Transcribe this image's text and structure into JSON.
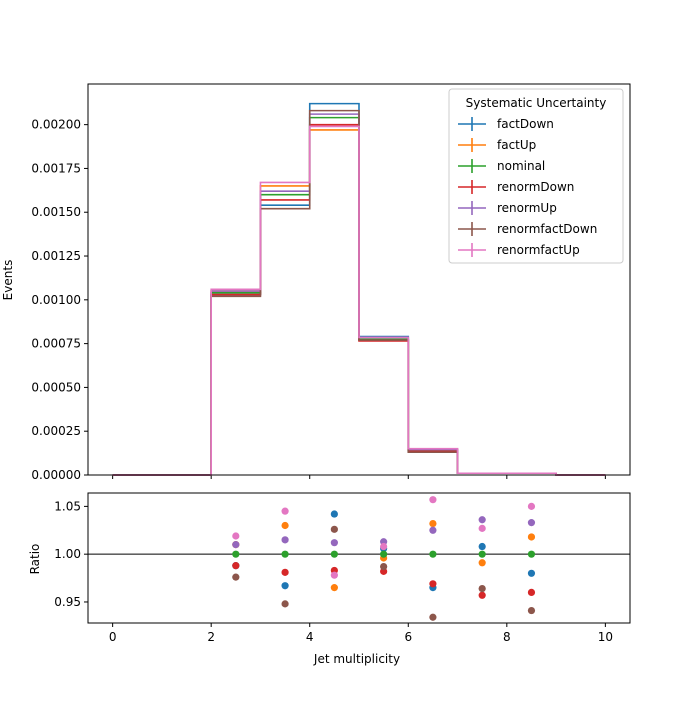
{
  "chart_data": [
    {
      "type": "step",
      "ylabel": "Events",
      "xlim": [
        -0.5,
        10.5
      ],
      "ylim": [
        0,
        0.002232
      ],
      "yticks": [
        0.0,
        0.00025,
        0.0005,
        0.00075,
        0.001,
        0.00125,
        0.0015,
        0.00175,
        0.002
      ],
      "ytick_labels": [
        "0.00000",
        "0.00025",
        "0.00050",
        "0.00075",
        "0.00100",
        "0.00125",
        "0.00150",
        "0.00175",
        "0.00200"
      ],
      "bin_edges": [
        0,
        1,
        2,
        3,
        4,
        5,
        6,
        7,
        8,
        9,
        10
      ],
      "legend": {
        "title": "Systematic Uncertainty",
        "placement": "top-right"
      },
      "series": [
        {
          "name": "factDown",
          "color": "#1f77b4",
          "values": [
            0,
            0,
            0.00103,
            0.00154,
            0.00212,
            0.00079,
            0.00014,
            1e-05,
            1e-05,
            0
          ]
        },
        {
          "name": "factUp",
          "color": "#ff7f0e",
          "values": [
            0,
            0,
            0.00105,
            0.00165,
            0.00197,
            0.00077,
            0.000145,
            1e-05,
            1e-05,
            0
          ]
        },
        {
          "name": "nominal",
          "color": "#2ca02c",
          "values": [
            0,
            0,
            0.00104,
            0.0016,
            0.00204,
            0.000775,
            0.00014,
            1e-05,
            1e-05,
            0
          ]
        },
        {
          "name": "renormDown",
          "color": "#d62728",
          "values": [
            0,
            0,
            0.00103,
            0.00157,
            0.002,
            0.000765,
            0.000135,
            1e-05,
            1e-05,
            0
          ]
        },
        {
          "name": "renormUp",
          "color": "#9467bd",
          "values": [
            0,
            0,
            0.00105,
            0.00162,
            0.00206,
            0.000785,
            0.000145,
            1e-05,
            1e-05,
            0
          ]
        },
        {
          "name": "renormfactDown",
          "color": "#8c564b",
          "values": [
            0,
            0,
            0.00102,
            0.00152,
            0.00208,
            0.00077,
            0.00013,
            1e-05,
            1e-05,
            0
          ]
        },
        {
          "name": "renormfactUp",
          "color": "#e377c2",
          "values": [
            0,
            0,
            0.00106,
            0.00167,
            0.00199,
            0.000785,
            0.00015,
            1e-05,
            1e-05,
            0
          ]
        }
      ]
    },
    {
      "type": "scatter",
      "xlabel": "Jet multiplicity",
      "ylabel": "Ratio",
      "xlim": [
        -0.5,
        10.5
      ],
      "ylim": [
        0.928,
        1.064
      ],
      "xticks": [
        0,
        2,
        4,
        6,
        8,
        10
      ],
      "xtick_labels": [
        "0",
        "2",
        "4",
        "6",
        "8",
        "10"
      ],
      "yticks": [
        0.95,
        1.0,
        1.05
      ],
      "ytick_labels": [
        "0.95",
        "1.00",
        "1.05"
      ],
      "reference_line": 1.0,
      "x": [
        2.5,
        3.5,
        4.5,
        5.5,
        6.5,
        7.5,
        8.5
      ],
      "series": [
        {
          "name": "factDown",
          "color": "#1f77b4",
          "values": [
            0.988,
            0.967,
            1.042,
            1.006,
            0.965,
            1.008,
            0.98
          ]
        },
        {
          "name": "factUp",
          "color": "#ff7f0e",
          "values": [
            1.01,
            1.03,
            0.965,
            0.996,
            1.032,
            0.991,
            1.018
          ]
        },
        {
          "name": "nominal",
          "color": "#2ca02c",
          "values": [
            1.0,
            1.0,
            1.0,
            1.0,
            1.0,
            1.0,
            1.0
          ]
        },
        {
          "name": "renormDown",
          "color": "#d62728",
          "values": [
            0.988,
            0.981,
            0.983,
            0.982,
            0.969,
            0.957,
            0.96
          ]
        },
        {
          "name": "renormUp",
          "color": "#9467bd",
          "values": [
            1.01,
            1.015,
            1.012,
            1.013,
            1.025,
            1.036,
            1.033
          ]
        },
        {
          "name": "renormfactDown",
          "color": "#8c564b",
          "values": [
            0.976,
            0.948,
            1.026,
            0.987,
            0.934,
            0.964,
            0.941
          ]
        },
        {
          "name": "renormfactUp",
          "color": "#e377c2",
          "values": [
            1.019,
            1.045,
            0.978,
            1.008,
            1.057,
            1.027,
            1.05
          ]
        }
      ]
    }
  ]
}
